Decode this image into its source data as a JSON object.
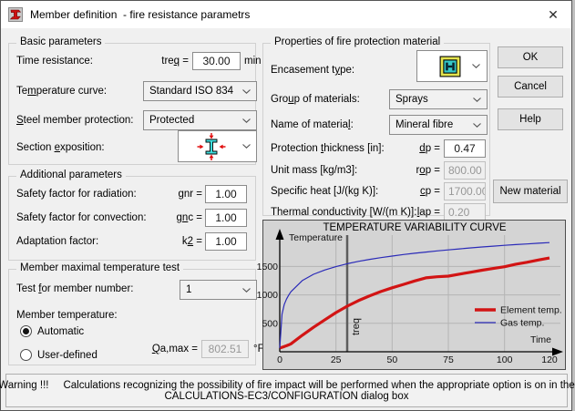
{
  "window": {
    "title": "Member definition  - fire resistance parametrs",
    "close_glyph": "✕"
  },
  "icons": {
    "app": "red-steel-I-beam",
    "section_exposition": "I-section-fire-exposure-4-sides",
    "encasement": "contour-encasement-section",
    "dropdown": "chevron-down",
    "close": "close-x"
  },
  "basic": {
    "group_label": "Basic parameters",
    "time_resistance_label": "Time resistance:",
    "treq_label": "treq =",
    "treq_value": "30.00",
    "treq_unit": "min",
    "temperature_curve_label": "Temperature curve:",
    "temperature_curve_value": "Standard ISO 834",
    "steel_protection_label": "Steel member protection:",
    "steel_protection_value": "Protected",
    "section_exposition_label": "Section exposition:"
  },
  "additional": {
    "group_label": "Additional parameters",
    "radiation_label": "Safety factor for radiation:",
    "gnr_label": "gnr =",
    "gnr_value": "1.00",
    "convection_label": "Safety factor for convection:",
    "gnc_label": "gnc =",
    "gnc_value": "1.00",
    "adaptation_label": "Adaptation factor:",
    "k2_label": "k2 =",
    "k2_value": "1.00"
  },
  "member_test": {
    "group_label": "Member maximal temperature test",
    "test_member_label": "Test for member number:",
    "test_member_value": "1",
    "member_temp_label": "Member temperature:",
    "automatic_label": "Automatic",
    "user_defined_label": "User-defined",
    "qamax_label": "Qa,max =",
    "qamax_value": "802.51",
    "qamax_unit": "°F"
  },
  "properties": {
    "group_label": "Properties of fire protection material",
    "encasement_label": "Encasement type:",
    "group_materials_label": "Group of materials:",
    "group_materials_value": "Sprays",
    "name_material_label": "Name of material:",
    "name_material_value": "Mineral fibre",
    "thickness_label": "Protection thickness [in]:",
    "dp_label": "dp =",
    "dp_value": "0.47",
    "unit_mass_label": "Unit mass [kg/m3]:",
    "rop_label": "rop =",
    "rop_value": "800.00",
    "specific_heat_label": "Specific heat [J/(kg K)]:",
    "cp_label": "cp =",
    "cp_value": "1700.00",
    "conductivity_label": "Thermal conductivity [W/(m K)]:",
    "lap_label": "lap =",
    "lap_value": "0.20"
  },
  "buttons": {
    "ok": "OK",
    "cancel": "Cancel",
    "help": "Help",
    "new_material": "New material"
  },
  "warning": {
    "prefix": "Warning !!!",
    "line1": "Calculations recognizing the possibility of fire impact will be performed when the appropriate option is on in the",
    "line2": "CALCULATIONS-EC3/CONFIGURATION dialog box"
  },
  "chart_data": {
    "type": "line",
    "title": "TEMPERATURE VARIABILITY CURVE",
    "xlabel": "Time",
    "ylabel": "Temperature",
    "xlim": [
      0,
      120
    ],
    "ylim": [
      0,
      2100
    ],
    "xticks": [
      0,
      25,
      50,
      75,
      100,
      120
    ],
    "yticks": [
      500,
      1000,
      1500
    ],
    "grid": true,
    "legend_position": "right-middle",
    "annotation": {
      "label": "treq",
      "x": 30
    },
    "x": [
      0,
      1,
      2,
      3,
      4,
      5,
      10,
      15,
      20,
      25,
      30,
      35,
      40,
      45,
      50,
      55,
      60,
      65,
      70,
      75,
      80,
      85,
      90,
      95,
      100,
      105,
      110,
      115,
      120
    ],
    "series": [
      {
        "name": "Element temp.",
        "color": "#d21414",
        "width": 3.2,
        "values": [
          65,
          78,
          92,
          106,
          122,
          140,
          290,
          430,
          560,
          690,
          802,
          900,
          985,
          1060,
          1125,
          1185,
          1245,
          1300,
          1320,
          1330,
          1365,
          1400,
          1435,
          1465,
          1495,
          1540,
          1575,
          1615,
          1650
        ]
      },
      {
        "name": "Gas temp.",
        "color": "#2a2ab8",
        "width": 1.2,
        "values": [
          68,
          660,
          831,
          927,
          999,
          1056,
          1252,
          1362,
          1438,
          1497,
          1548,
          1590,
          1625,
          1656,
          1684,
          1710,
          1733,
          1754,
          1774,
          1792,
          1810,
          1827,
          1843,
          1858,
          1872,
          1885,
          1897,
          1909,
          1920
        ]
      }
    ]
  }
}
